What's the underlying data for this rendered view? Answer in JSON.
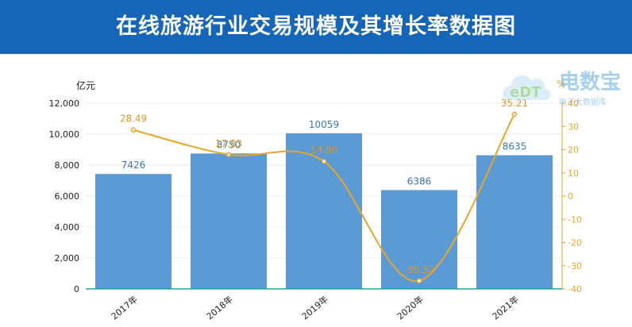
{
  "header": {
    "title": "在线旅游行业交易规模及其增长率数据图"
  },
  "logo": {
    "main_text": "电数宝",
    "sub_text": "电子大数据库",
    "mark_text": "eDT"
  },
  "chart_data": {
    "type": "bar",
    "title": "在线旅游行业交易规模及其增长率数据图",
    "categories": [
      "2017年",
      "2018年",
      "2019年",
      "2020年",
      "2021年"
    ],
    "series": [
      {
        "values": [
          7426,
          8750,
          10059,
          6386,
          8635
        ],
        "axis": "left",
        "kind": "bar"
      },
      {
        "values": [
          28.49,
          17.83,
          14.96,
          -36.52,
          35.21
        ],
        "axis": "right",
        "kind": "line"
      }
    ],
    "bar_labels": [
      "7426",
      "8750",
      "10059",
      "6386",
      "8635"
    ],
    "line_labels": [
      "28.49",
      "17.83",
      "14.96",
      "-36.52",
      "35.21"
    ],
    "ylabel_left": "亿元",
    "ylabel_right": "%",
    "ylim_left": [
      0,
      12000
    ],
    "ylim_right": [
      -40,
      40
    ],
    "yticks_left": [
      "0",
      "2,000",
      "4,000",
      "6,000",
      "8,000",
      "10,000",
      "12,000"
    ],
    "yticks_right": [
      "-40",
      "-30",
      "-20",
      "-10",
      "0",
      "10",
      "20",
      "30",
      "40"
    ],
    "grid": true,
    "colors": {
      "bar": "#5b9bd5",
      "line": "#eaa426",
      "bar_label": "#3a78b8",
      "line_label": "#d9962a",
      "right_axis": "#eaa426"
    }
  }
}
